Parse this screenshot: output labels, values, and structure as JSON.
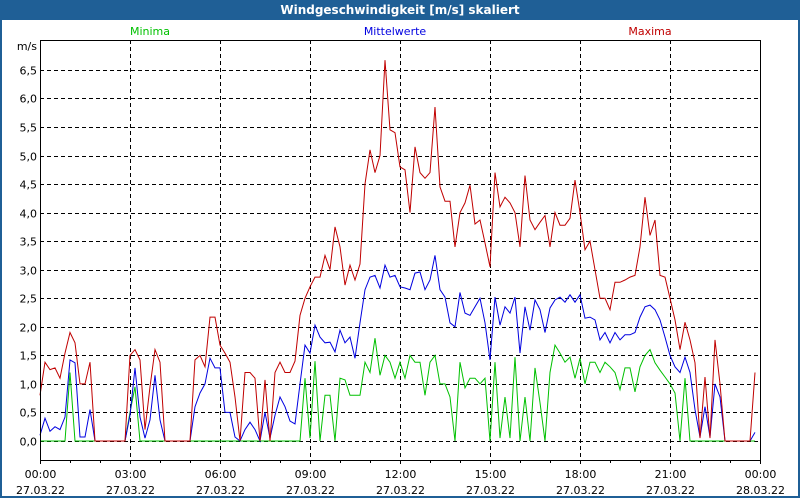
{
  "window": {
    "title": "Windgeschwindigkeit [m/s] skaliert"
  },
  "chart_data": {
    "type": "line",
    "title": "Windgeschwindigkeit [m/s] skaliert",
    "ylabel": "m/s",
    "xlabel": "",
    "ylim": [
      -0.33,
      7.0
    ],
    "xlim_hours": [
      0,
      24
    ],
    "interval_minutes": 10,
    "grid": true,
    "legend_placement": "top",
    "y_ticks": [
      {
        "value": 0,
        "label": "0,0"
      },
      {
        "value": 0.5,
        "label": "0,5"
      },
      {
        "value": 1,
        "label": "1,0"
      },
      {
        "value": 1.5,
        "label": "1,5"
      },
      {
        "value": 2,
        "label": "2,0"
      },
      {
        "value": 2.5,
        "label": "2,5"
      },
      {
        "value": 3,
        "label": "3,0"
      },
      {
        "value": 3.5,
        "label": "3,5"
      },
      {
        "value": 4,
        "label": "4,0"
      },
      {
        "value": 4.5,
        "label": "4,5"
      },
      {
        "value": 5,
        "label": "5,0"
      },
      {
        "value": 5.5,
        "label": "5,5"
      },
      {
        "value": 6,
        "label": "6,0"
      },
      {
        "value": 6.5,
        "label": "6,5"
      }
    ],
    "x_ticks": [
      {
        "hour": 0,
        "time": "00:00",
        "date": "27.03.22"
      },
      {
        "hour": 3,
        "time": "03:00",
        "date": "27.03.22"
      },
      {
        "hour": 6,
        "time": "06:00",
        "date": "27.03.22"
      },
      {
        "hour": 9,
        "time": "09:00",
        "date": "27.03.22"
      },
      {
        "hour": 12,
        "time": "12:00",
        "date": "27.03.22"
      },
      {
        "hour": 15,
        "time": "15:00",
        "date": "27.03.22"
      },
      {
        "hour": 18,
        "time": "18:00",
        "date": "27.03.22"
      },
      {
        "hour": 21,
        "time": "21:00",
        "date": "27.03.22"
      },
      {
        "hour": 24,
        "time": "00:00",
        "date": "28.03.22"
      }
    ],
    "series": [
      {
        "name": "Minima",
        "color": "#00c000",
        "values": [
          0,
          0,
          0,
          0,
          0,
          0,
          1.2,
          0,
          0,
          0,
          0,
          0,
          0,
          0,
          0,
          0,
          0,
          0,
          0.5,
          0.95,
          0,
          0,
          0,
          0,
          0,
          0,
          0,
          0,
          0,
          0,
          0,
          0,
          0,
          0,
          0,
          0,
          0,
          0,
          0,
          0,
          0,
          0,
          0,
          0,
          0,
          0,
          0,
          0,
          0,
          0,
          0,
          0,
          0,
          1.1,
          0.05,
          1.4,
          0,
          0.8,
          0.8,
          0,
          1.1,
          1.07,
          0.8,
          0.8,
          0.8,
          1.38,
          1.2,
          1.8,
          1.15,
          1.5,
          1.38,
          1.1,
          1.38,
          1.1,
          1.5,
          1.38,
          1.38,
          0.8,
          1.38,
          1.5,
          1.0,
          1.0,
          0.77,
          0,
          1.38,
          0.93,
          1.1,
          1.1,
          1.0,
          1.1,
          0,
          1.38,
          0.05,
          0.77,
          0.05,
          1.47,
          0,
          0.77,
          0,
          1.28,
          0.67,
          0,
          1.2,
          1.68,
          1.54,
          1.38,
          1.47,
          1.1,
          1.45,
          1.0,
          1.38,
          1.38,
          1.2,
          1.38,
          1.3,
          1.2,
          0.9,
          1.28,
          1.28,
          0.86,
          1.3,
          1.5,
          1.6,
          1.37,
          1.24,
          1.12,
          1.0,
          0.84,
          0,
          1.1,
          0,
          0,
          0,
          0,
          0,
          0,
          0,
          0,
          0,
          0,
          0,
          0,
          0,
          0
        ]
      },
      {
        "name": "Mittelwerte",
        "color": "#0000e0",
        "values": [
          0.1,
          0.4,
          0.17,
          0.25,
          0.2,
          0.42,
          1.42,
          1.37,
          0.07,
          0.07,
          0.55,
          0,
          0,
          0,
          0,
          0,
          0,
          0,
          0.45,
          1.28,
          0.42,
          0.05,
          0.37,
          1.15,
          0.37,
          0,
          0,
          0,
          0,
          0,
          0,
          0.6,
          0.84,
          1.0,
          1.45,
          1.28,
          1.28,
          0.5,
          0.5,
          0.07,
          0,
          0.2,
          0.33,
          0.2,
          0,
          0.5,
          0.05,
          0.45,
          0.77,
          0.6,
          0.35,
          0.3,
          1.0,
          1.68,
          1.54,
          2.03,
          1.82,
          1.72,
          1.73,
          1.56,
          1.94,
          1.72,
          1.82,
          1.45,
          2.07,
          2.65,
          2.87,
          2.9,
          2.68,
          3.08,
          2.87,
          2.9,
          2.7,
          2.68,
          2.65,
          2.94,
          2.96,
          2.65,
          2.82,
          3.25,
          2.65,
          2.52,
          2.07,
          2.0,
          2.6,
          2.24,
          2.2,
          2.35,
          2.5,
          2.07,
          1.42,
          2.52,
          2.03,
          2.35,
          2.24,
          2.52,
          1.54,
          2.35,
          1.94,
          2.47,
          2.3,
          1.9,
          2.33,
          2.47,
          2.52,
          2.43,
          2.56,
          2.43,
          2.56,
          2.15,
          2.17,
          2.12,
          1.77,
          1.9,
          1.72,
          1.9,
          1.77,
          1.86,
          1.86,
          1.9,
          2.17,
          2.35,
          2.38,
          2.3,
          2.12,
          1.82,
          1.5,
          1.3,
          1.2,
          1.47,
          1.2,
          0.55,
          0.07,
          0.6,
          0.07,
          1.0,
          0.77,
          0,
          0,
          0,
          0,
          0,
          0,
          0.15
        ]
      },
      {
        "name": "Maxima",
        "color": "#c00000",
        "values": [
          0.8,
          1.38,
          1.25,
          1.28,
          1.1,
          1.54,
          1.9,
          1.72,
          1.0,
          1.0,
          1.38,
          0,
          0,
          0,
          0,
          0,
          0,
          0,
          1.5,
          1.6,
          1.42,
          0.2,
          0.95,
          1.6,
          1.38,
          0,
          0,
          0,
          0,
          0,
          0,
          1.42,
          1.5,
          1.3,
          2.17,
          2.17,
          1.68,
          1.54,
          1.38,
          0.77,
          0,
          1.2,
          1.2,
          1.1,
          0,
          1.07,
          0,
          1.2,
          1.38,
          1.2,
          1.2,
          1.4,
          2.2,
          2.5,
          2.7,
          2.87,
          2.87,
          3.25,
          3.0,
          3.75,
          3.4,
          2.73,
          3.08,
          2.82,
          3.1,
          4.5,
          5.1,
          4.7,
          5.0,
          6.67,
          5.45,
          5.4,
          4.8,
          4.75,
          4.0,
          5.15,
          4.7,
          4.6,
          4.7,
          5.85,
          4.45,
          4.2,
          4.2,
          3.4,
          4.0,
          4.17,
          4.48,
          3.8,
          3.87,
          3.47,
          3.05,
          4.7,
          4.1,
          4.27,
          4.17,
          4.0,
          3.4,
          4.65,
          3.87,
          3.7,
          3.83,
          3.95,
          3.4,
          4.0,
          3.78,
          3.78,
          3.9,
          4.57,
          4.0,
          3.35,
          3.5,
          3.0,
          2.5,
          2.5,
          2.3,
          2.78,
          2.78,
          2.82,
          2.87,
          2.9,
          3.4,
          4.27,
          3.6,
          3.87,
          2.9,
          2.87,
          2.5,
          2.12,
          1.6,
          2.08,
          1.77,
          1.37,
          0.05,
          1.12,
          0.05,
          1.77,
          1.0,
          0,
          0,
          0,
          0,
          0,
          0,
          1.2
        ]
      }
    ]
  }
}
